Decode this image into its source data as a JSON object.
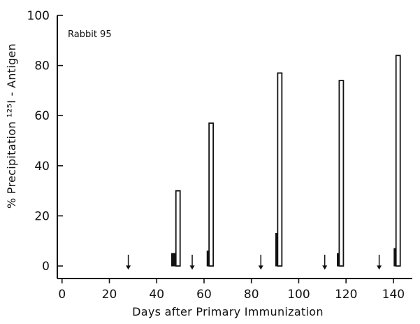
{
  "chart_data": {
    "type": "bar",
    "annotation": "Rabbit 95",
    "xlabel": "Days after Primary Immunization",
    "ylabel": "% Precipitation ¹²⁵I - Antigen",
    "xlim": [
      -2,
      148
    ],
    "ylim": [
      -5,
      100
    ],
    "xticks": [
      0,
      20,
      40,
      60,
      80,
      100,
      120,
      140
    ],
    "yticks": [
      0,
      20,
      40,
      60,
      80,
      100
    ],
    "grid": false,
    "series": [
      {
        "style": "solid",
        "x": [
          47,
          62,
          91,
          117,
          141
        ],
        "values": [
          5,
          6,
          13,
          5,
          7
        ]
      },
      {
        "style": "open",
        "x": [
          49,
          63,
          92,
          118,
          142
        ],
        "values": [
          30,
          57,
          77,
          74,
          84
        ]
      }
    ],
    "immunization_arrows_x": [
      28,
      55,
      84,
      111,
      134
    ]
  }
}
